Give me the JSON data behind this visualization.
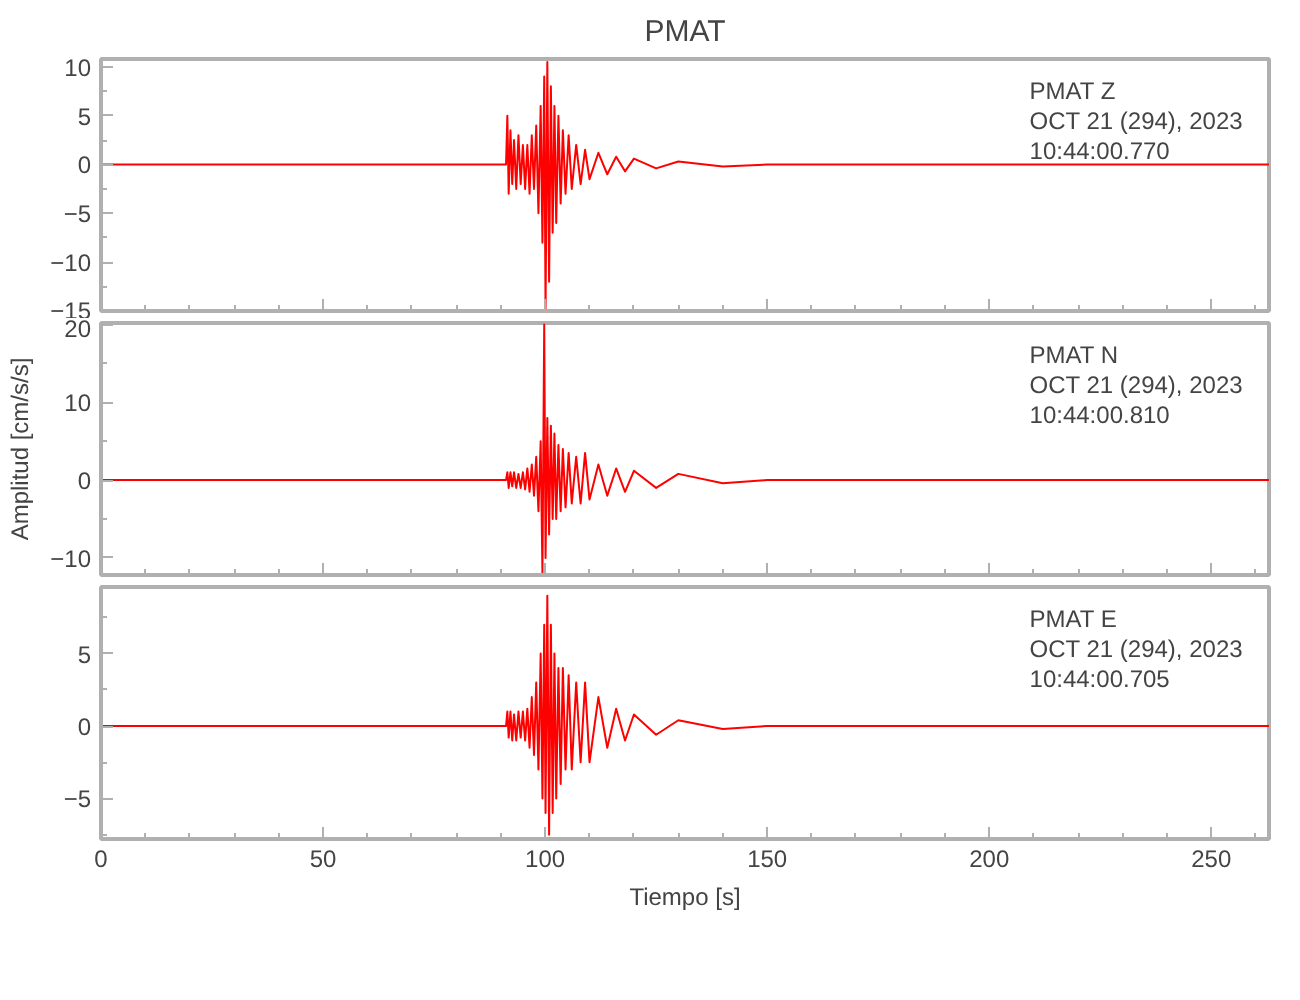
{
  "chart_data": [
    {
      "type": "line",
      "title": "PMAT",
      "xlim": [
        0,
        263
      ],
      "xticks": [
        0,
        50,
        100,
        150,
        200,
        250
      ],
      "ylim": [
        -15,
        10.8
      ],
      "yticks": [
        -15,
        -10,
        -5,
        0,
        5,
        10
      ],
      "tick_labels": "y",
      "grid": false,
      "marker": "none",
      "line_style": "solid",
      "annotations": [
        "PMAT   Z",
        "OCT 21 (294), 2023",
        "10:44:00.770"
      ],
      "x": [
        0,
        30,
        60,
        90,
        91.2,
        91.5,
        91.8,
        92.2,
        92.6,
        93,
        93.5,
        94,
        94.5,
        95,
        95.5,
        96,
        96.5,
        97,
        97.5,
        98,
        98.5,
        99,
        99.4,
        99.8,
        100.1,
        100.5,
        100.9,
        101.3,
        101.7,
        102.1,
        102.5,
        103,
        103.5,
        104,
        104.6,
        105.3,
        106,
        107,
        108,
        109,
        110,
        112,
        114,
        116,
        118,
        120,
        125,
        130,
        140,
        150,
        263
      ],
      "series": [
        {
          "color": "#ff0000",
          "values": [
            0,
            0,
            0,
            0,
            0,
            5,
            -3,
            3.5,
            -2,
            2.5,
            -2.5,
            3,
            -2,
            2,
            -2.5,
            2,
            -3,
            3,
            -2.5,
            4,
            -5,
            6,
            -8,
            9,
            -15,
            10.5,
            -12,
            8,
            -7,
            6,
            -6,
            5,
            -4,
            3.5,
            -3,
            3,
            -2.5,
            2,
            -2,
            1.5,
            -1.5,
            1.2,
            -1,
            0.8,
            -0.7,
            0.6,
            -0.4,
            0.3,
            -0.2,
            0,
            0
          ]
        }
      ]
    },
    {
      "type": "line",
      "ylabel": "Amplitud [cm/s/s]",
      "xlim": [
        0,
        263
      ],
      "xticks": [
        0,
        50,
        100,
        150,
        200,
        250
      ],
      "ylim": [
        -12.2,
        20.2
      ],
      "yticks": [
        -10,
        0,
        10,
        20
      ],
      "tick_labels": "y",
      "grid": false,
      "marker": "none",
      "line_style": "solid",
      "annotations": [
        "PMAT   N",
        "OCT 21 (294), 2023",
        "10:44:00.810"
      ],
      "x": [
        0,
        30,
        60,
        90,
        91.2,
        91.5,
        91.8,
        92.2,
        92.6,
        93,
        93.5,
        94,
        94.5,
        95,
        95.5,
        96,
        96.5,
        97,
        97.5,
        98,
        98.5,
        99,
        99.4,
        99.8,
        100.1,
        100.5,
        100.9,
        101.3,
        101.7,
        102.1,
        102.5,
        103,
        103.5,
        104,
        104.6,
        105.3,
        106,
        107,
        108,
        109,
        110,
        112,
        114,
        116,
        118,
        120,
        125,
        130,
        140,
        150,
        263
      ],
      "series": [
        {
          "color": "#ff0000",
          "values": [
            0,
            0,
            0,
            0,
            0,
            1,
            -1,
            1,
            -0.8,
            1,
            -1,
            0.8,
            -1,
            1,
            -1.2,
            1.5,
            -1.5,
            2,
            -2,
            3,
            -4,
            5,
            -12,
            20,
            -10,
            8,
            -7,
            7,
            -5,
            6,
            -5,
            4.5,
            -4,
            4,
            -3.5,
            3.5,
            -3,
            3,
            -3,
            3.5,
            -2.5,
            2,
            -2,
            1.5,
            -1.5,
            1.2,
            -1,
            0.8,
            -0.4,
            0,
            0
          ]
        }
      ]
    },
    {
      "type": "line",
      "xlabel": "Tiempo [s]",
      "xlim": [
        0,
        263
      ],
      "xticks": [
        0,
        50,
        100,
        150,
        200,
        250
      ],
      "ylim": [
        -7.8,
        9.6
      ],
      "yticks": [
        -5,
        0,
        5
      ],
      "grid": false,
      "marker": "none",
      "line_style": "solid",
      "annotations": [
        "PMAT   E",
        "OCT 21 (294), 2023",
        "10:44:00.705"
      ],
      "x": [
        0,
        30,
        60,
        90,
        91.2,
        91.5,
        91.8,
        92.2,
        92.6,
        93,
        93.5,
        94,
        94.5,
        95,
        95.5,
        96,
        96.5,
        97,
        97.5,
        98,
        98.5,
        99,
        99.4,
        99.8,
        100.1,
        100.5,
        100.9,
        101.3,
        101.7,
        102.1,
        102.5,
        103,
        103.5,
        104,
        104.6,
        105.3,
        106,
        107,
        108,
        109,
        110,
        112,
        114,
        116,
        118,
        120,
        125,
        130,
        140,
        150,
        263
      ],
      "series": [
        {
          "color": "#ff0000",
          "values": [
            0,
            0,
            0,
            0,
            0,
            1,
            -0.8,
            1,
            -1,
            0.8,
            -1,
            1,
            -0.8,
            1,
            -1,
            1.2,
            -1.5,
            2,
            -2,
            3,
            -3,
            5,
            -5,
            7,
            -6,
            9,
            -7.5,
            7,
            -6,
            5,
            -5,
            4,
            -4,
            4,
            -3,
            3.5,
            -3,
            3,
            -2.5,
            3,
            -2.5,
            2,
            -1.5,
            1.2,
            -1,
            0.8,
            -0.6,
            0.4,
            -0.2,
            0,
            0
          ]
        }
      ]
    }
  ]
}
